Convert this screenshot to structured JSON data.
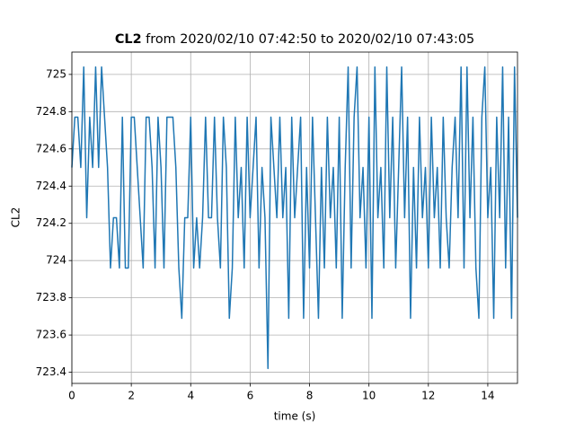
{
  "chart_data": {
    "type": "line",
    "title_name": "CL2",
    "title_rest": "from 2020/02/10 07:42:50 to 2020/02/10 07:43:05",
    "xlabel": "time (s)",
    "ylabel": "CL2",
    "xlim": [
      0,
      15.0
    ],
    "ylim": [
      723.34,
      725.12
    ],
    "xticks": [
      0,
      2,
      4,
      6,
      8,
      10,
      12,
      14
    ],
    "yticks": [
      723.4,
      723.6,
      723.8,
      724.0,
      724.2,
      724.4,
      724.6,
      724.8,
      725.0
    ],
    "grid": true,
    "series": [
      {
        "name": "CL2",
        "color": "#1f77b4",
        "x": [
          0.0,
          0.1,
          0.2,
          0.3,
          0.4,
          0.5,
          0.6,
          0.7,
          0.8,
          0.9,
          1.0,
          1.1,
          1.2,
          1.3,
          1.4,
          1.5,
          1.6,
          1.7,
          1.8,
          1.9,
          2.0,
          2.1,
          2.2,
          2.3,
          2.4,
          2.5,
          2.6,
          2.7,
          2.8,
          2.9,
          3.0,
          3.1,
          3.2,
          3.3,
          3.4,
          3.5,
          3.6,
          3.7,
          3.8,
          3.9,
          4.0,
          4.1,
          4.2,
          4.3,
          4.4,
          4.5,
          4.6,
          4.7,
          4.8,
          4.9,
          5.0,
          5.1,
          5.2,
          5.3,
          5.4,
          5.5,
          5.6,
          5.7,
          5.8,
          5.9,
          6.0,
          6.1,
          6.2,
          6.3,
          6.4,
          6.5,
          6.6,
          6.7,
          6.8,
          6.9,
          7.0,
          7.1,
          7.2,
          7.3,
          7.4,
          7.5,
          7.6,
          7.7,
          7.8,
          7.9,
          8.0,
          8.1,
          8.2,
          8.3,
          8.4,
          8.5,
          8.6,
          8.7,
          8.8,
          8.9,
          9.0,
          9.1,
          9.2,
          9.3,
          9.4,
          9.5,
          9.6,
          9.7,
          9.8,
          9.9,
          10.0,
          10.1,
          10.2,
          10.3,
          10.4,
          10.5,
          10.6,
          10.7,
          10.8,
          10.9,
          11.0,
          11.1,
          11.2,
          11.3,
          11.4,
          11.5,
          11.6,
          11.7,
          11.8,
          11.9,
          12.0,
          12.1,
          12.2,
          12.3,
          12.4,
          12.5,
          12.6,
          12.7,
          12.8,
          12.9,
          13.0,
          13.1,
          13.2,
          13.3,
          13.4,
          13.5,
          13.6,
          13.7,
          13.8,
          13.9,
          14.0,
          14.1,
          14.2,
          14.3,
          14.4,
          14.5,
          14.6,
          14.7,
          14.8,
          14.9,
          15.0
        ],
        "values": [
          724.5,
          724.77,
          724.77,
          724.5,
          725.04,
          724.23,
          724.77,
          724.5,
          725.04,
          724.5,
          725.04,
          724.77,
          724.5,
          723.96,
          724.23,
          724.23,
          723.96,
          724.77,
          723.96,
          723.96,
          724.77,
          724.77,
          724.5,
          724.23,
          723.96,
          724.77,
          724.77,
          724.5,
          723.96,
          724.77,
          724.5,
          723.96,
          724.77,
          724.77,
          724.77,
          724.5,
          723.96,
          723.69,
          724.23,
          724.23,
          724.77,
          723.96,
          724.23,
          723.96,
          724.23,
          724.77,
          724.23,
          724.23,
          724.77,
          724.23,
          723.96,
          724.77,
          724.5,
          723.69,
          723.96,
          724.77,
          724.23,
          724.5,
          723.96,
          724.77,
          724.23,
          724.5,
          724.77,
          723.96,
          724.5,
          724.23,
          723.42,
          724.77,
          724.5,
          724.23,
          724.77,
          724.23,
          724.5,
          723.69,
          724.77,
          724.23,
          724.5,
          724.77,
          723.69,
          724.5,
          723.96,
          724.77,
          724.23,
          723.69,
          724.5,
          723.96,
          724.77,
          724.23,
          724.5,
          723.96,
          724.77,
          723.69,
          724.5,
          725.04,
          723.96,
          724.77,
          725.04,
          724.23,
          724.5,
          723.96,
          724.77,
          723.69,
          725.04,
          724.23,
          724.5,
          723.96,
          725.04,
          724.23,
          724.77,
          723.96,
          724.5,
          725.04,
          724.23,
          724.77,
          723.69,
          724.5,
          723.96,
          724.77,
          724.23,
          724.5,
          723.96,
          724.77,
          724.23,
          724.5,
          723.96,
          724.77,
          724.23,
          723.96,
          724.5,
          724.77,
          724.23,
          725.04,
          723.96,
          725.04,
          724.23,
          724.77,
          723.96,
          723.69,
          724.77,
          725.04,
          724.23,
          724.5,
          723.69,
          724.77,
          724.23,
          725.04,
          723.96,
          724.77,
          723.69,
          725.04,
          724.23
        ]
      }
    ]
  }
}
